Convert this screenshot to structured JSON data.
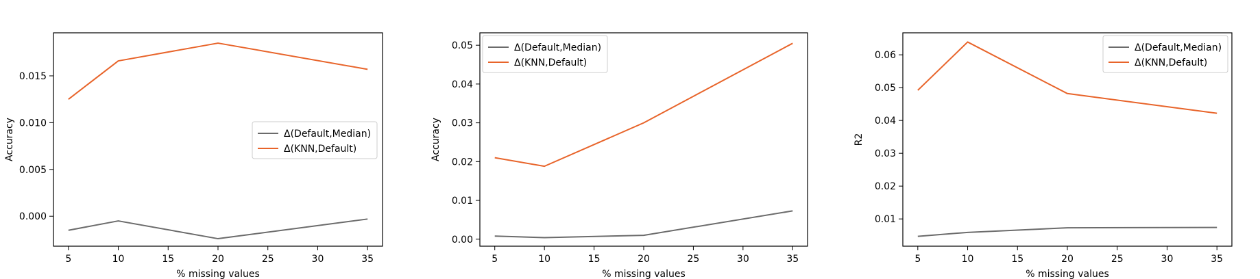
{
  "chart_data": [
    {
      "type": "line",
      "xlabel": "% missing values",
      "ylabel": "Accuracy",
      "x": [
        5,
        10,
        20,
        35
      ],
      "xlim": [
        3.5,
        36.5
      ],
      "xticks": [
        5,
        10,
        15,
        20,
        25,
        30,
        35
      ],
      "xtick_labels": [
        "5",
        "10",
        "15",
        "20",
        "25",
        "30",
        "35"
      ],
      "ylim": [
        -0.0032,
        0.0196
      ],
      "yticks": [
        0.0,
        0.005,
        0.01,
        0.015
      ],
      "ytick_labels": [
        "0.000",
        "0.005",
        "0.010",
        "0.015"
      ],
      "legend_position": "center-right",
      "grid": false,
      "series": [
        {
          "name": "Δ(Default,Median)",
          "color": "#6b6b6b",
          "values": [
            -0.0015,
            -0.0005,
            -0.0024,
            -0.0003
          ]
        },
        {
          "name": "Δ(KNN,Default)",
          "color": "#e8642a",
          "values": [
            0.0125,
            0.0166,
            0.0185,
            0.0157
          ]
        }
      ]
    },
    {
      "type": "line",
      "xlabel": "% missing values",
      "ylabel": "Accuracy",
      "x": [
        5,
        10,
        20,
        35
      ],
      "xlim": [
        3.5,
        36.5
      ],
      "xticks": [
        5,
        10,
        15,
        20,
        25,
        30,
        35
      ],
      "xtick_labels": [
        "5",
        "10",
        "15",
        "20",
        "25",
        "30",
        "35"
      ],
      "ylim": [
        -0.0018,
        0.0532
      ],
      "yticks": [
        0.0,
        0.01,
        0.02,
        0.03,
        0.04,
        0.05
      ],
      "ytick_labels": [
        "0.00",
        "0.01",
        "0.02",
        "0.03",
        "0.04",
        "0.05"
      ],
      "legend_position": "top-left",
      "grid": false,
      "series": [
        {
          "name": "Δ(Default,Median)",
          "color": "#6b6b6b",
          "values": [
            0.0008,
            0.0004,
            0.001,
            0.0073
          ]
        },
        {
          "name": "Δ(KNN,Default)",
          "color": "#e8642a",
          "values": [
            0.021,
            0.0188,
            0.03,
            0.0505
          ]
        }
      ]
    },
    {
      "type": "line",
      "xlabel": "% missing values",
      "ylabel": "R2",
      "x": [
        5,
        10,
        20,
        35
      ],
      "xlim": [
        3.5,
        36.5
      ],
      "xticks": [
        5,
        10,
        15,
        20,
        25,
        30,
        35
      ],
      "xtick_labels": [
        "5",
        "10",
        "15",
        "20",
        "25",
        "30",
        "35"
      ],
      "ylim": [
        0.0017,
        0.0667
      ],
      "yticks": [
        0.01,
        0.02,
        0.03,
        0.04,
        0.05,
        0.06
      ],
      "ytick_labels": [
        "0.01",
        "0.02",
        "0.03",
        "0.04",
        "0.05",
        "0.06"
      ],
      "legend_position": "top-right",
      "grid": false,
      "series": [
        {
          "name": "Δ(Default,Median)",
          "color": "#6b6b6b",
          "values": [
            0.0047,
            0.0059,
            0.0073,
            0.0074
          ]
        },
        {
          "name": "Δ(KNN,Default)",
          "color": "#e8642a",
          "values": [
            0.0492,
            0.0639,
            0.0482,
            0.0422
          ]
        }
      ]
    }
  ]
}
